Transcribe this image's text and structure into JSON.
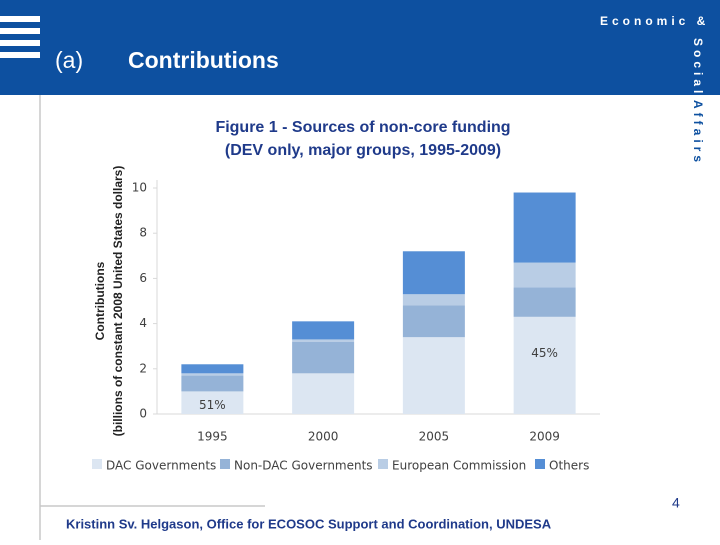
{
  "header": {
    "label": "(a)",
    "title": "Contributions"
  },
  "branding": {
    "line1": "Economic &",
    "line2": "Social",
    "line3": "Affairs"
  },
  "chart_data": {
    "type": "stacked_bar",
    "title": "Figure 1 - Sources of non-core funding",
    "subtitle": "(DEV only, major groups, 1995-2009)",
    "ylabel": [
      "Contributions",
      "(billions of constant 2008 United States dollars)"
    ],
    "categories": [
      "1995",
      "2000",
      "2005",
      "2009"
    ],
    "series": [
      {
        "name": "DAC Governments",
        "color": "#dce6f2",
        "values": [
          1.0,
          1.8,
          3.4,
          4.3
        ]
      },
      {
        "name": "Non-DAC Governments",
        "color": "#95b3d7",
        "values": [
          0.7,
          1.4,
          1.4,
          1.3
        ]
      },
      {
        "name": "European Commission",
        "color": "#b9cde5",
        "values": [
          0.1,
          0.1,
          0.5,
          1.1
        ]
      },
      {
        "name": "Others",
        "color": "#558ed5",
        "values": [
          0.4,
          0.8,
          1.9,
          3.1
        ]
      }
    ],
    "share_labels": [
      "51%",
      null,
      null,
      "45%"
    ],
    "ylim": [
      0,
      10
    ],
    "yticks": [
      0,
      2,
      4,
      6,
      8,
      10
    ],
    "grid": false,
    "legend": "bottom"
  },
  "page_number": 4,
  "footer": "Kristinn Sv. Helgason, Office for ECOSOC Support and Coordination, UNDESA"
}
